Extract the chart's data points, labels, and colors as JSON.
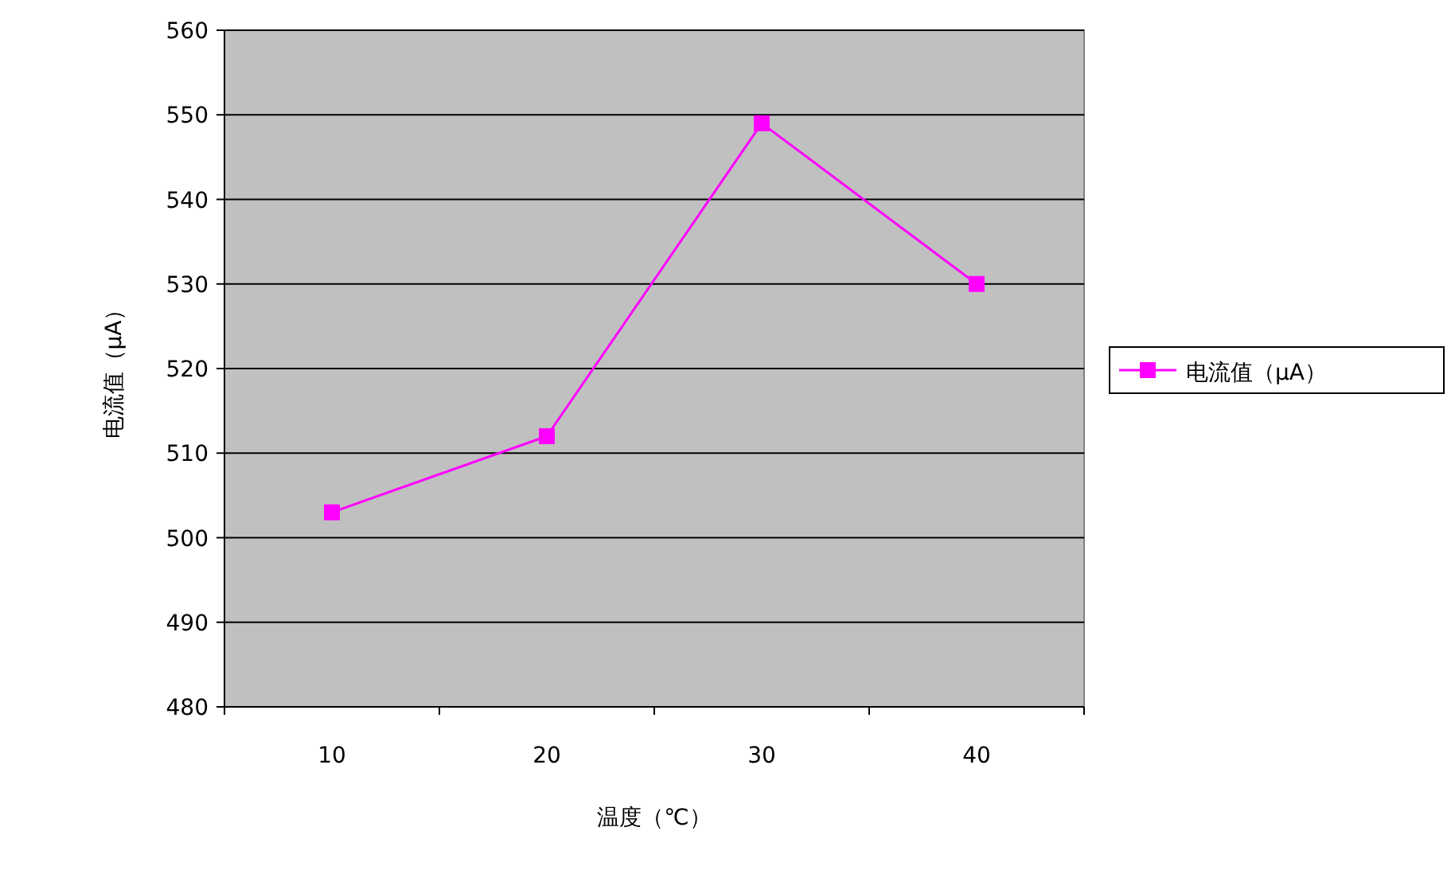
{
  "chart_data": {
    "type": "line",
    "xlabel": "温度（℃）",
    "ylabel": "电流值（μA）",
    "categories": [
      "10",
      "20",
      "30",
      "40"
    ],
    "series": [
      {
        "name": "电流值（μA）",
        "color": "#ff00ff",
        "values": [
          503,
          512,
          549,
          530
        ]
      }
    ],
    "ylim": [
      480,
      560
    ],
    "yticks": [
      480,
      490,
      500,
      510,
      520,
      530,
      540,
      550,
      560
    ],
    "grid": "y",
    "legend": "right",
    "marker": "square",
    "line_style": "solid"
  }
}
